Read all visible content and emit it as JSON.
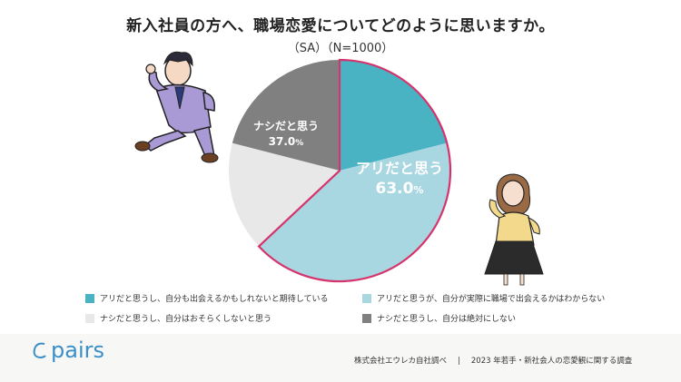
{
  "header": {
    "title": "新入社員の方へ、職場恋愛についてどのように思いますか。",
    "subtitle": "（SA）（N=1000）"
  },
  "chart_data": {
    "type": "pie",
    "title": "新入社員の方へ、職場恋愛についてどのように思いますか。",
    "subtitle": "（SA）（N=1000）",
    "groups": [
      {
        "label": "アリだと思う",
        "value": "63.0%",
        "color": "#d6336c"
      },
      {
        "label": "ナシだと思う",
        "value": "37.0%",
        "color": "#808080"
      }
    ],
    "slices": [
      {
        "label": "アリだと思うし、自分も出会えるかもしれないと期待している",
        "value": 21.0,
        "color": "#4ab3c3"
      },
      {
        "label": "アリだと思うが、自分が実際に職場で出会えるかはわからない",
        "value": 42.0,
        "color": "#a8d6e1"
      },
      {
        "label": "ナシだと思うし、自分はおそらくしないと思う",
        "value": 16.0,
        "color": "#e8e8e8"
      },
      {
        "label": "ナシだと思うし、自分は絶対にしない",
        "value": 21.0,
        "color": "#808080"
      }
    ],
    "legend_position": "bottom"
  },
  "labels": {
    "yes": "アリだと思う",
    "yes_value": "63.0",
    "no": "ナシだと思う",
    "no_value": "37.0",
    "percent": "%"
  },
  "legend": [
    {
      "label": "アリだと思うし、自分も出会えるかもしれないと期待している",
      "color": "#4ab3c3"
    },
    {
      "label": "アリだと思うが、自分が実際に職場で出会えるかはわからない",
      "color": "#a8d6e1"
    },
    {
      "label": "ナシだと思うし、自分はおそらくしないと思う",
      "color": "#e8e8e8"
    },
    {
      "label": "ナシだと思うし、自分は絶対にしない",
      "color": "#808080"
    }
  ],
  "footer": {
    "logo": "pairs",
    "company": "株式会社エウレカ自社調べ",
    "separator": "|",
    "survey": "2023 年若手・新社会人の恋愛観に関する調査"
  }
}
